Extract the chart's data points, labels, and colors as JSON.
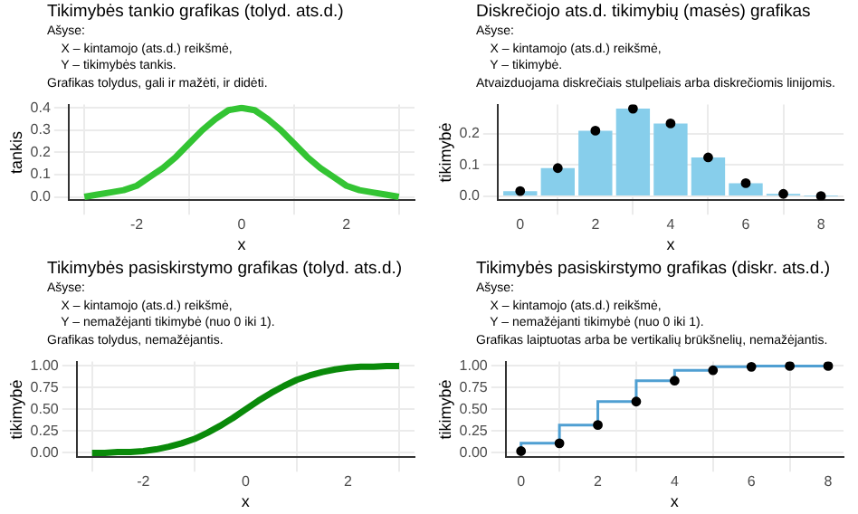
{
  "chart_data": [
    {
      "type": "line",
      "title": "Tikimybės tankio grafikas (tolyd. ats.d.)",
      "subtitle": "Ašyse:\n    X – kintamojo (ats.d.) reikšmė,\n    Y – tikimybės tankis.\nGrafikas tolydus, gali ir mažėti, ir didėti.",
      "xlabel": "x",
      "ylabel": "tankis",
      "grid": true,
      "xlim": [
        -3.3,
        3.3
      ],
      "xticks": [
        -2,
        0,
        2
      ],
      "ylim": [
        -0.015,
        0.415
      ],
      "yticks": [
        {
          "value": 0,
          "label": "0.0"
        },
        0.1,
        0.2,
        0.3,
        0.4
      ],
      "series": [
        {
          "color": "#33c433",
          "x": [
            -3,
            -2.75,
            -2.5,
            -2.25,
            -2,
            -1.75,
            -1.5,
            -1.25,
            -1,
            -0.75,
            -0.5,
            -0.25,
            0,
            0.25,
            0.5,
            0.75,
            1,
            1.25,
            1.5,
            1.75,
            2,
            2.25,
            2.5,
            2.75,
            3
          ],
          "values": [
            0,
            0.01,
            0.02,
            0.03,
            0.05,
            0.09,
            0.13,
            0.18,
            0.24,
            0.3,
            0.35,
            0.39,
            0.4,
            0.39,
            0.35,
            0.3,
            0.24,
            0.18,
            0.13,
            0.09,
            0.05,
            0.03,
            0.02,
            0.01,
            0
          ]
        }
      ]
    },
    {
      "type": "bar",
      "title": "Diskrečiojo ats.d. tikimybių (masės) grafikas",
      "subtitle": "Ašyse:\n    X – kintamojo (ats.d.) reikšmė,\n    Y – tikimybė.\nAtvaizduojama diskrečiais stulpeliais arba diskrečiomis linijomis.",
      "xlabel": "x",
      "ylabel": "tikimybė",
      "grid": true,
      "xlim": [
        -0.6,
        8.6
      ],
      "xticks": [
        0,
        2,
        4,
        6,
        8
      ],
      "ylim": [
        -0.012,
        0.292
      ],
      "yticks": [
        {
          "value": 0,
          "label": "0.0"
        },
        0.1,
        0.2
      ],
      "series": [
        {
          "color": "#87ceeb",
          "x": [
            0,
            1,
            2,
            3,
            4,
            5,
            6,
            7,
            8
          ],
          "values": [
            0.017,
            0.09,
            0.209,
            0.279,
            0.232,
            0.124,
            0.042,
            0.008,
            0.001
          ]
        },
        {
          "type": "scatter",
          "marker": "circle",
          "color": "#000000",
          "x": [
            0,
            1,
            2,
            3,
            4,
            5,
            6,
            7,
            8
          ],
          "values": [
            0.017,
            0.09,
            0.209,
            0.279,
            0.232,
            0.124,
            0.042,
            0.008,
            0.001
          ]
        }
      ]
    },
    {
      "type": "line",
      "title": "Tikimybės pasiskirstymo grafikas (tolyd. ats.d.)",
      "subtitle": "Ašyse:\n    X – kintamojo (ats.d.) reikšmė,\n    Y – nemažėjanti tikimybė (nuo 0 iki 1).\nGrafikas tolydus, nemažėjantis.",
      "xlabel": "x",
      "ylabel": "tikimybė",
      "grid": true,
      "xlim": [
        -3.3,
        3.3
      ],
      "xticks": [
        -2,
        0,
        2
      ],
      "ylim": [
        -0.05,
        1.05
      ],
      "yticks": [
        {
          "value": 0,
          "label": "0.00"
        },
        {
          "value": 0.25,
          "label": "0.25"
        },
        {
          "value": 0.5,
          "label": "0.50"
        },
        {
          "value": 0.75,
          "label": "0.75"
        },
        {
          "value": 1,
          "label": "1.00"
        }
      ],
      "series": [
        {
          "color": "#0a8a0a",
          "x": [
            -3,
            -2.75,
            -2.5,
            -2.25,
            -2,
            -1.75,
            -1.5,
            -1.25,
            -1,
            -0.75,
            -0.5,
            -0.25,
            0,
            0.25,
            0.5,
            0.75,
            1,
            1.25,
            1.5,
            1.75,
            2,
            2.25,
            2.5,
            2.75,
            3
          ],
          "values": [
            0,
            0,
            0.01,
            0.01,
            0.02,
            0.04,
            0.07,
            0.11,
            0.16,
            0.23,
            0.31,
            0.4,
            0.5,
            0.6,
            0.69,
            0.77,
            0.84,
            0.89,
            0.93,
            0.96,
            0.98,
            0.99,
            0.99,
            1,
            1
          ]
        }
      ]
    },
    {
      "type": "step",
      "title": "Tikimybės pasiskirstymo grafikas (diskr. ats.d.)",
      "subtitle": "Ašyse:\n    X – kintamojo (ats.d.) reikšmė,\n    Y – nemažėjanti tikimybė (nuo 0 iki 1).\nGrafikas laiptuotas arba be vertikalių brūkšnelių, nemažėjantis.",
      "xlabel": "x",
      "ylabel": "tikimybė",
      "grid": true,
      "xlim": [
        -0.4,
        8.4
      ],
      "xticks": [
        0,
        2,
        4,
        6,
        8
      ],
      "ylim": [
        -0.05,
        1.05
      ],
      "yticks": [
        {
          "value": 0,
          "label": "0.00"
        },
        {
          "value": 0.25,
          "label": "0.25"
        },
        {
          "value": 0.5,
          "label": "0.50"
        },
        {
          "value": 0.75,
          "label": "0.75"
        },
        {
          "value": 1,
          "label": "1.00"
        }
      ],
      "series": [
        {
          "color": "#4f9fd2",
          "x": [
            0,
            1,
            2,
            3,
            4,
            5,
            6,
            7,
            8
          ],
          "values": [
            0.02,
            0.11,
            0.32,
            0.59,
            0.83,
            0.95,
            0.99,
            1,
            1
          ]
        },
        {
          "type": "scatter",
          "marker": "circle",
          "color": "#000000",
          "x": [
            0,
            1,
            2,
            3,
            4,
            5,
            6,
            7,
            8
          ],
          "values": [
            0.02,
            0.11,
            0.32,
            0.59,
            0.83,
            0.95,
            0.99,
            1,
            1
          ]
        }
      ]
    }
  ]
}
